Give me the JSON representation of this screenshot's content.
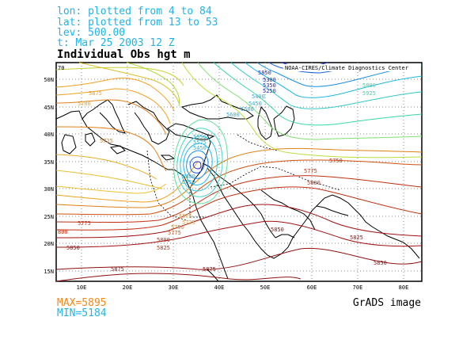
{
  "header": {
    "line1": "lon: plotted from 4 to 84",
    "line2": "lat: plotted from 13 to 53",
    "line3": "lev: 500.00",
    "line4": "t: Mar 25 2003 12 Z"
  },
  "title": "Individual Obs hgt m",
  "credit": "NOAA-CIRES/Climate Diagnostics Center",
  "corner_label": "70",
  "max_label": "MAX=5895",
  "min_label": "MIN=5184",
  "footer": "GrADS image",
  "colors": {
    "header": "#1fb4e6",
    "max": "#f08a1c",
    "min": "#1fb4e6"
  },
  "map": {
    "lon_range": [
      4,
      84
    ],
    "lat_range": [
      13,
      53
    ],
    "lon_ticks": [
      "10E",
      "20E",
      "30E",
      "40E",
      "50E",
      "60E",
      "70E",
      "80E"
    ],
    "lat_ticks": [
      "50N",
      "45N",
      "40N",
      "35N",
      "30N",
      "25N",
      "20N",
      "15N"
    ],
    "contour_labels": [
      {
        "text": "5850",
        "color": "#1a2ad0"
      },
      {
        "text": "5300",
        "color": "#1a2ad0"
      },
      {
        "text": "5350",
        "color": "#1a2ad0"
      },
      {
        "text": "5250",
        "color": "#1a2ad0"
      },
      {
        "text": "5400",
        "color": "#1fb4e6"
      },
      {
        "text": "5450",
        "color": "#1fb4e6"
      },
      {
        "text": "5500",
        "color": "#1fb4e6"
      },
      {
        "text": "5600",
        "color": "#1fb4e6"
      },
      {
        "text": "5800",
        "color": "#38d8a0"
      },
      {
        "text": "5925",
        "color": "#38d8a0"
      },
      {
        "text": "5875",
        "color": "#f0a020"
      },
      {
        "text": "5700",
        "color": "#f0a020"
      },
      {
        "text": "5725",
        "color": "#e08018"
      },
      {
        "text": "5550",
        "color": "#1fb4e6"
      },
      {
        "text": "5575",
        "color": "#1fb4e6"
      },
      {
        "text": "5450",
        "color": "#1fb4e6"
      },
      {
        "text": "5400",
        "color": "#1fb4e6"
      },
      {
        "text": "5350",
        "color": "#1fb4e6"
      },
      {
        "text": "5750",
        "color": "#c03010"
      },
      {
        "text": "5775",
        "color": "#c03010"
      },
      {
        "text": "5800",
        "color": "#c03010"
      },
      {
        "text": "5575",
        "color": "#f0a020"
      },
      {
        "text": "5725",
        "color": "#f0a020"
      },
      {
        "text": "5750",
        "color": "#e08018"
      },
      {
        "text": "5775",
        "color": "#d05010"
      },
      {
        "text": "5775",
        "color": "#c03010"
      },
      {
        "text": "800",
        "color": "#c03010"
      },
      {
        "text": "5800",
        "color": "#c03010"
      },
      {
        "text": "5825",
        "color": "#c03010"
      },
      {
        "text": "5850",
        "color": "#a01010"
      },
      {
        "text": "5850",
        "color": "#a01010"
      },
      {
        "text": "5825",
        "color": "#a01010"
      },
      {
        "text": "5875",
        "color": "#901010"
      },
      {
        "text": "5875",
        "color": "#901010"
      },
      {
        "text": "5850",
        "color": "#901010"
      }
    ]
  }
}
